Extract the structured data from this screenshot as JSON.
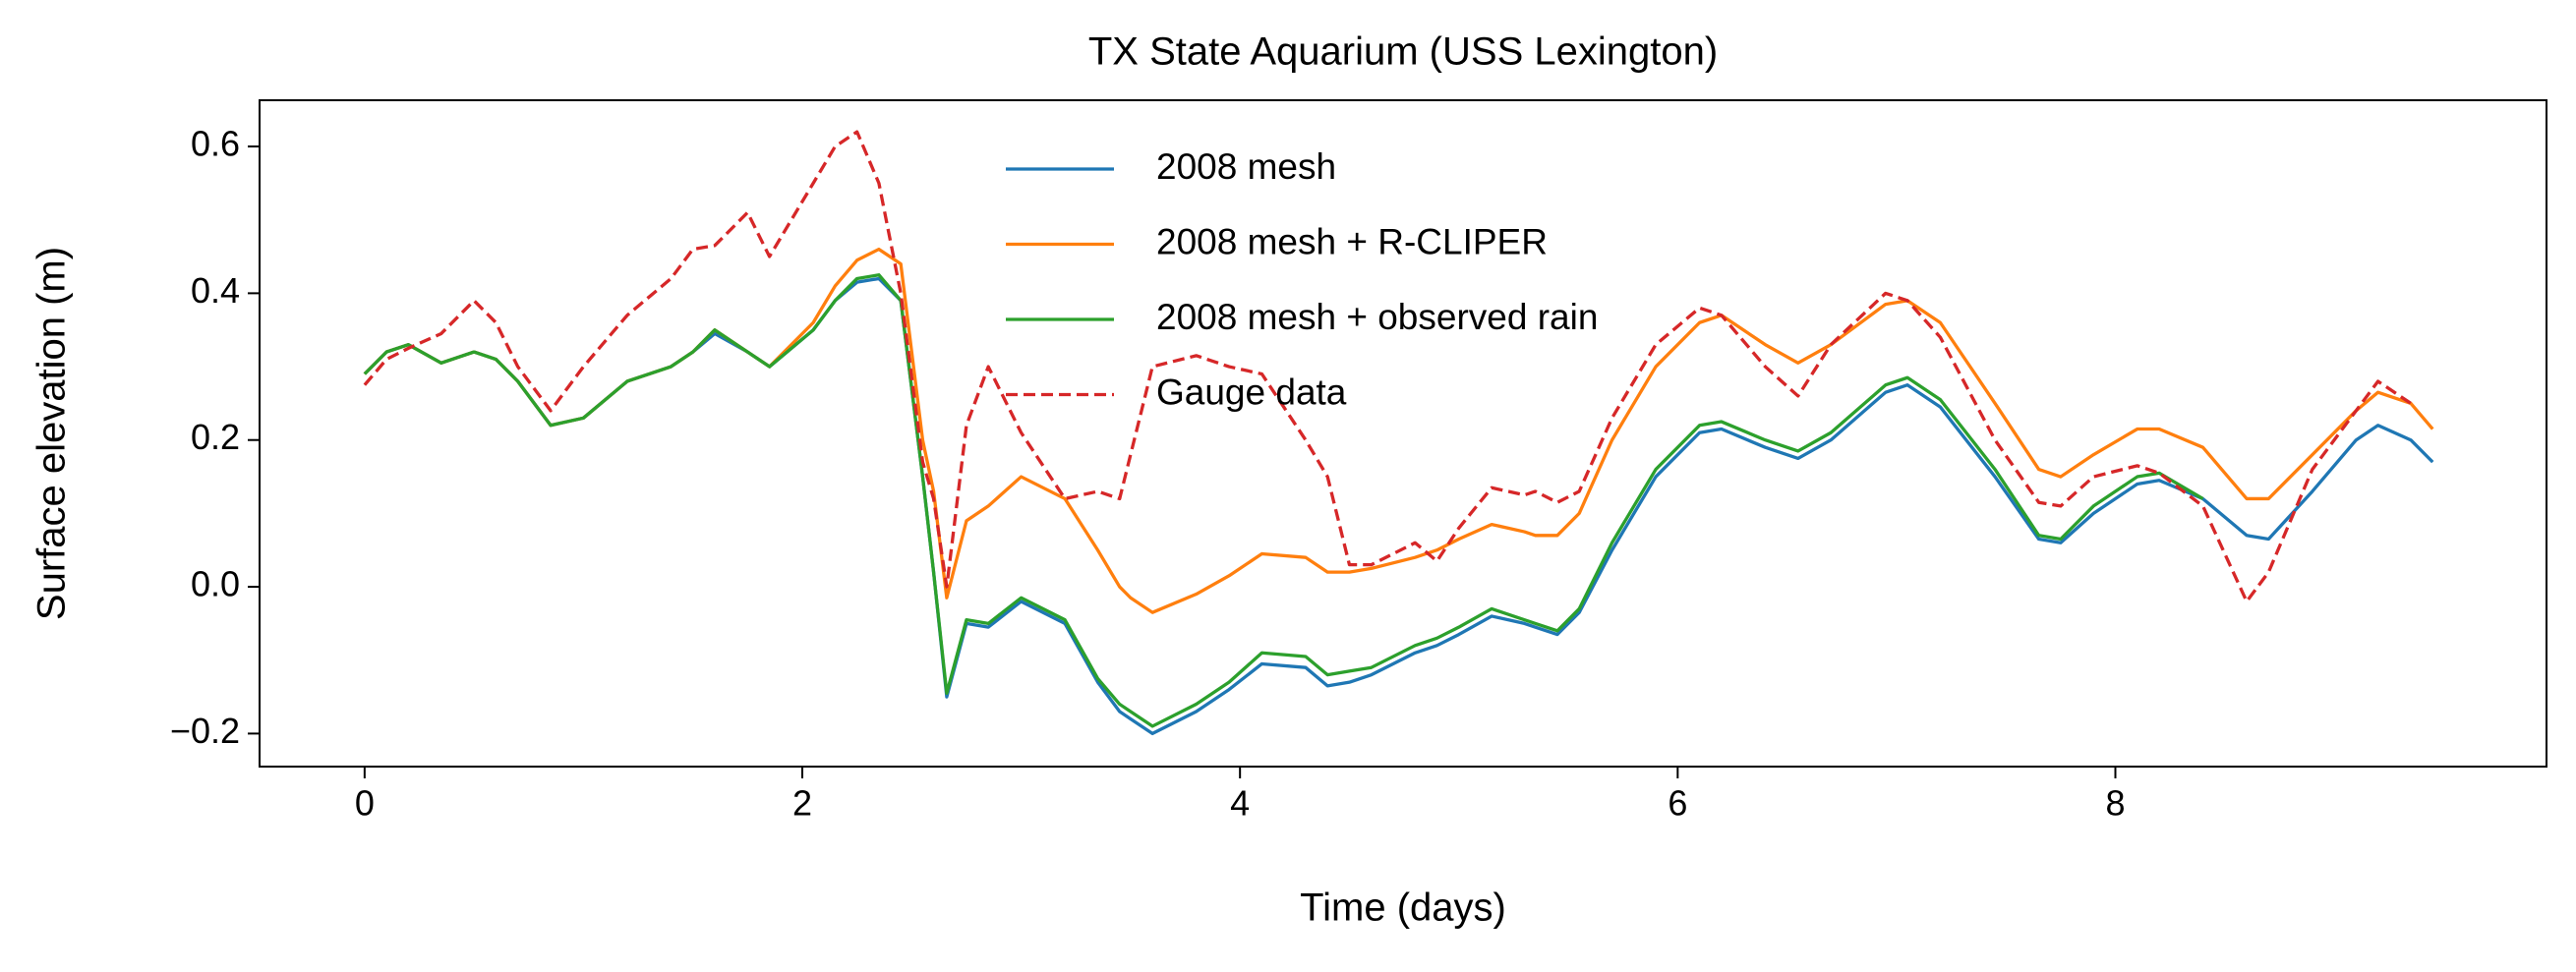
{
  "chart_data": {
    "type": "line",
    "title": "TX State Aquarium (USS Lexington)",
    "xlabel": "Time (days)",
    "ylabel": "Surface elevation (m)",
    "xlim": [
      -0.48,
      9.97
    ],
    "ylim": [
      -0.245,
      0.663
    ],
    "xticks": [
      0,
      2,
      4,
      6,
      8
    ],
    "yticks": [
      {
        "value": -0.2,
        "label": "−0.2"
      },
      {
        "value": 0,
        "label": "0.0"
      },
      0.2,
      0.4,
      0.6
    ],
    "grid": false,
    "legend": "upper center",
    "x": [
      0,
      0.1,
      0.2,
      0.35,
      0.5,
      0.6,
      0.7,
      0.85,
      1.0,
      1.2,
      1.4,
      1.5,
      1.6,
      1.75,
      1.85,
      2.05,
      2.15,
      2.25,
      2.35,
      2.45,
      2.55,
      2.6,
      2.66,
      2.75,
      2.85,
      3.0,
      3.2,
      3.35,
      3.45,
      3.5,
      3.6,
      3.8,
      3.95,
      4.1,
      4.3,
      4.4,
      4.5,
      4.6,
      4.8,
      4.9,
      5.0,
      5.15,
      5.3,
      5.35,
      5.45,
      5.55,
      5.7,
      5.9,
      6.1,
      6.2,
      6.4,
      6.55,
      6.7,
      6.95,
      7.05,
      7.2,
      7.45,
      7.65,
      7.75,
      7.9,
      8.1,
      8.2,
      8.4,
      8.6,
      8.7,
      8.9,
      9.1,
      9.2,
      9.35,
      9.45
    ],
    "series": [
      {
        "name": "2008 mesh",
        "color": "#1f77b4",
        "style": "solid",
        "values": [
          0.29,
          0.32,
          0.33,
          0.305,
          0.32,
          0.31,
          0.28,
          0.22,
          0.23,
          0.28,
          0.3,
          0.32,
          0.345,
          0.32,
          0.3,
          0.35,
          0.39,
          0.415,
          0.42,
          0.39,
          0.15,
          0.02,
          -0.15,
          -0.05,
          -0.055,
          -0.02,
          -0.05,
          -0.13,
          -0.17,
          -0.18,
          -0.2,
          -0.17,
          -0.14,
          -0.105,
          -0.11,
          -0.135,
          -0.13,
          -0.12,
          -0.09,
          -0.08,
          -0.065,
          -0.04,
          -0.05,
          -0.055,
          -0.065,
          -0.035,
          0.05,
          0.15,
          0.21,
          0.215,
          0.19,
          0.175,
          0.2,
          0.265,
          0.275,
          0.245,
          0.15,
          0.065,
          0.06,
          0.1,
          0.14,
          0.145,
          0.12,
          0.07,
          0.065,
          0.13,
          0.2,
          0.22,
          0.2,
          0.17
        ]
      },
      {
        "name": "2008 mesh + R-CLIPER",
        "color": "#ff7f0e",
        "style": "solid",
        "values": [
          0.29,
          0.32,
          0.33,
          0.305,
          0.32,
          0.31,
          0.28,
          0.22,
          0.23,
          0.28,
          0.3,
          0.32,
          0.35,
          0.32,
          0.3,
          0.36,
          0.41,
          0.445,
          0.46,
          0.44,
          0.2,
          0.13,
          -0.015,
          0.09,
          0.11,
          0.15,
          0.12,
          0.05,
          0.0,
          -0.015,
          -0.035,
          -0.01,
          0.015,
          0.045,
          0.04,
          0.02,
          0.02,
          0.025,
          0.04,
          0.05,
          0.065,
          0.085,
          0.075,
          0.07,
          0.07,
          0.1,
          0.2,
          0.3,
          0.36,
          0.37,
          0.33,
          0.305,
          0.33,
          0.385,
          0.39,
          0.36,
          0.25,
          0.16,
          0.15,
          0.18,
          0.215,
          0.215,
          0.19,
          0.12,
          0.12,
          0.18,
          0.24,
          0.265,
          0.25,
          0.215
        ]
      },
      {
        "name": "2008 mesh + observed rain",
        "color": "#2ca02c",
        "style": "solid",
        "values": [
          0.29,
          0.32,
          0.33,
          0.305,
          0.32,
          0.31,
          0.28,
          0.22,
          0.23,
          0.28,
          0.3,
          0.32,
          0.35,
          0.32,
          0.3,
          0.35,
          0.39,
          0.42,
          0.425,
          0.39,
          0.15,
          0.02,
          -0.145,
          -0.045,
          -0.05,
          -0.015,
          -0.045,
          -0.125,
          -0.16,
          -0.17,
          -0.19,
          -0.16,
          -0.13,
          -0.09,
          -0.095,
          -0.12,
          -0.115,
          -0.11,
          -0.08,
          -0.07,
          -0.055,
          -0.03,
          -0.045,
          -0.05,
          -0.06,
          -0.03,
          0.06,
          0.16,
          0.22,
          0.225,
          0.2,
          0.185,
          0.21,
          0.275,
          0.285,
          0.255,
          0.16,
          0.07,
          0.065,
          0.11,
          0.15,
          0.155,
          0.12,
          null,
          null,
          null,
          null,
          null,
          null,
          null
        ]
      },
      {
        "name": "Gauge data",
        "color": "#d62728",
        "style": "dashed",
        "values": [
          0.275,
          0.31,
          0.325,
          0.345,
          0.39,
          0.36,
          0.3,
          0.24,
          0.3,
          0.37,
          0.42,
          0.46,
          0.465,
          0.51,
          0.45,
          0.55,
          0.6,
          0.62,
          0.55,
          0.4,
          0.17,
          0.12,
          0.0,
          0.22,
          0.3,
          0.21,
          0.12,
          0.13,
          0.12,
          0.18,
          0.3,
          0.315,
          0.3,
          0.29,
          0.2,
          0.15,
          0.03,
          0.03,
          0.06,
          0.035,
          0.08,
          0.135,
          0.125,
          0.13,
          0.115,
          0.13,
          0.23,
          0.33,
          0.38,
          0.37,
          0.3,
          0.26,
          0.33,
          0.4,
          0.39,
          0.34,
          0.2,
          0.115,
          0.11,
          0.15,
          0.165,
          0.155,
          0.11,
          -0.02,
          0.02,
          0.16,
          0.24,
          0.28,
          0.25,
          null
        ]
      }
    ]
  }
}
